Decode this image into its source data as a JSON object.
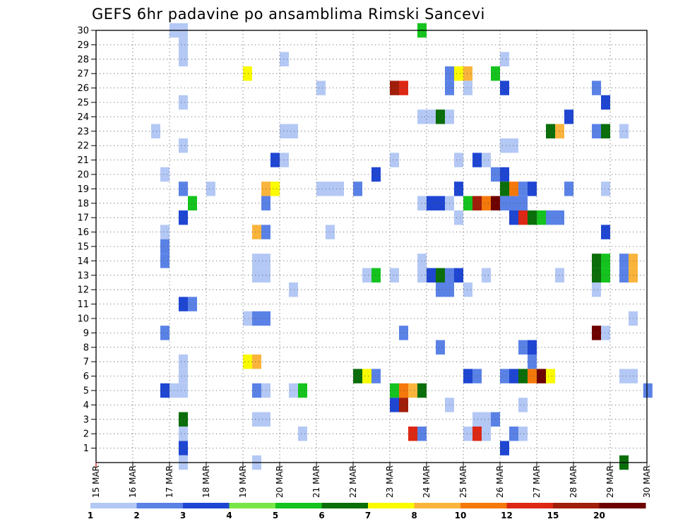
{
  "chart_data": {
    "type": "heatmap",
    "title": "GEFS 6hr padavine po ansamblima Rimski Sancevi",
    "xlabel": "",
    "ylabel": "",
    "x_tick_labels": [
      "15 MAR",
      "16 MAR",
      "17 MAR",
      "18 MAR",
      "19 MAR",
      "20 MAR",
      "21 MAR",
      "22 MAR",
      "23 MAR",
      "24 MAR",
      "25 MAR",
      "26 MAR",
      "27 MAR",
      "28 MAR",
      "29 MAR",
      "30 MAR"
    ],
    "x_range_days": [
      15,
      30
    ],
    "y_tick_labels": [
      "1",
      "2",
      "3",
      "4",
      "5",
      "6",
      "7",
      "8",
      "9",
      "10",
      "11",
      "12",
      "13",
      "14",
      "15",
      "16",
      "17",
      "18",
      "19",
      "20",
      "21",
      "22",
      "23",
      "24",
      "25",
      "26",
      "27",
      "28",
      "29",
      "30"
    ],
    "y_range": [
      0,
      30
    ],
    "grid": true,
    "legend": {
      "placement": "bottom",
      "labels": [
        "1",
        "2",
        "3",
        "4",
        "5",
        "6",
        "7",
        "8",
        "10",
        "12",
        "15",
        "20"
      ],
      "colors": [
        "#b4c8f5",
        "#5a82e6",
        "#1e46d2",
        "#78e646",
        "#14c31e",
        "#0a6e0a",
        "#fafa00",
        "#fab43c",
        "#f5780a",
        "#dc2814",
        "#a01e0a",
        "#6e0000"
      ]
    },
    "cells": [
      [
        17.0,
        30,
        1
      ],
      [
        17.25,
        30,
        1
      ],
      [
        17.25,
        29,
        1
      ],
      [
        17.25,
        28,
        1
      ],
      [
        17.25,
        22,
        1
      ],
      [
        17.25,
        25,
        1
      ],
      [
        16.75,
        16,
        1
      ],
      [
        16.75,
        20,
        1
      ],
      [
        16.75,
        15,
        2
      ],
      [
        16.5,
        23,
        1
      ],
      [
        16.75,
        14,
        2
      ],
      [
        17.25,
        19,
        2
      ],
      [
        17.25,
        17,
        3
      ],
      [
        17.5,
        18,
        5
      ],
      [
        17.25,
        11,
        3
      ],
      [
        17.5,
        11,
        2
      ],
      [
        16.75,
        9,
        2
      ],
      [
        17.25,
        7,
        1
      ],
      [
        17.25,
        6,
        1
      ],
      [
        17.0,
        5,
        1
      ],
      [
        17.25,
        5,
        1
      ],
      [
        16.75,
        5,
        3
      ],
      [
        17.25,
        3,
        6
      ],
      [
        17.25,
        2,
        1
      ],
      [
        17.25,
        1,
        3
      ],
      [
        17.25,
        0,
        1
      ],
      [
        18.0,
        19,
        1
      ],
      [
        19.0,
        27,
        7
      ],
      [
        19.5,
        19,
        8
      ],
      [
        19.75,
        19,
        7
      ],
      [
        19.5,
        18,
        2
      ],
      [
        19.25,
        16,
        8
      ],
      [
        19.5,
        16,
        2
      ],
      [
        19.25,
        14,
        1
      ],
      [
        19.5,
        14,
        1
      ],
      [
        19.25,
        13,
        1
      ],
      [
        19.5,
        13,
        1
      ],
      [
        19.0,
        10,
        1
      ],
      [
        19.25,
        10,
        2
      ],
      [
        19.5,
        10,
        2
      ],
      [
        19.0,
        7,
        7
      ],
      [
        19.25,
        7,
        8
      ],
      [
        19.25,
        5,
        2
      ],
      [
        19.5,
        5,
        1
      ],
      [
        19.25,
        3,
        1
      ],
      [
        19.5,
        3,
        1
      ],
      [
        19.25,
        0,
        1
      ],
      [
        20.0,
        28,
        1
      ],
      [
        19.75,
        21,
        3
      ],
      [
        20.0,
        21,
        1
      ],
      [
        20.0,
        23,
        1
      ],
      [
        20.25,
        23,
        1
      ],
      [
        20.25,
        12,
        1
      ],
      [
        20.25,
        5,
        1
      ],
      [
        20.5,
        5,
        5
      ],
      [
        20.5,
        2,
        1
      ],
      [
        21.0,
        26,
        1
      ],
      [
        21.0,
        19,
        1
      ],
      [
        21.25,
        19,
        1
      ],
      [
        21.5,
        19,
        1
      ],
      [
        21.25,
        16,
        1
      ],
      [
        22.0,
        19,
        2
      ],
      [
        22.5,
        20,
        3
      ],
      [
        22.25,
        13,
        1
      ],
      [
        22.5,
        13,
        5
      ],
      [
        22.0,
        6,
        6
      ],
      [
        22.25,
        6,
        7
      ],
      [
        22.5,
        6,
        2
      ],
      [
        23.0,
        26,
        11
      ],
      [
        23.25,
        26,
        10
      ],
      [
        23.0,
        21,
        1
      ],
      [
        23.0,
        13,
        1
      ],
      [
        23.0,
        5,
        5
      ],
      [
        23.25,
        5,
        9
      ],
      [
        23.5,
        5,
        8
      ],
      [
        23.75,
        5,
        6
      ],
      [
        23.0,
        4,
        3
      ],
      [
        23.25,
        4,
        11
      ],
      [
        23.25,
        9,
        2
      ],
      [
        23.5,
        2,
        10
      ],
      [
        23.75,
        2,
        2
      ],
      [
        23.75,
        30,
        5
      ],
      [
        23.75,
        24,
        1
      ],
      [
        24.0,
        24,
        1
      ],
      [
        24.25,
        24,
        6
      ],
      [
        24.5,
        24,
        1
      ],
      [
        23.75,
        18,
        1
      ],
      [
        24.0,
        18,
        3
      ],
      [
        24.25,
        18,
        3
      ],
      [
        24.5,
        18,
        1
      ],
      [
        23.75,
        14,
        1
      ],
      [
        23.75,
        13,
        1
      ],
      [
        24.0,
        13,
        3
      ],
      [
        24.25,
        13,
        6
      ],
      [
        24.5,
        13,
        2
      ],
      [
        24.75,
        13,
        3
      ],
      [
        24.25,
        12,
        2
      ],
      [
        24.5,
        12,
        2
      ],
      [
        24.25,
        8,
        2
      ],
      [
        24.5,
        4,
        1
      ],
      [
        24.5,
        27,
        2
      ],
      [
        24.75,
        27,
        7
      ],
      [
        25.0,
        27,
        8
      ],
      [
        24.5,
        26,
        2
      ],
      [
        25.0,
        26,
        1
      ],
      [
        24.75,
        21,
        1
      ],
      [
        24.75,
        19,
        3
      ],
      [
        24.75,
        17,
        1
      ],
      [
        25.0,
        18,
        5
      ],
      [
        25.25,
        18,
        11
      ],
      [
        25.5,
        18,
        9
      ],
      [
        25.75,
        18,
        12
      ],
      [
        25.0,
        12,
        1
      ],
      [
        25.0,
        6,
        3
      ],
      [
        25.25,
        6,
        2
      ],
      [
        25.0,
        2,
        1
      ],
      [
        25.25,
        2,
        10
      ],
      [
        25.5,
        2,
        1
      ],
      [
        25.25,
        3,
        1
      ],
      [
        25.5,
        3,
        1
      ],
      [
        25.75,
        3,
        2
      ],
      [
        25.25,
        21,
        3
      ],
      [
        25.5,
        21,
        1
      ],
      [
        25.5,
        13,
        1
      ],
      [
        25.75,
        27,
        5
      ],
      [
        26.0,
        28,
        1
      ],
      [
        26.0,
        26,
        3
      ],
      [
        26.0,
        22,
        1
      ],
      [
        26.25,
        22,
        1
      ],
      [
        25.75,
        20,
        2
      ],
      [
        26.0,
        20,
        3
      ],
      [
        26.0,
        19,
        6
      ],
      [
        26.25,
        19,
        9
      ],
      [
        26.5,
        19,
        2
      ],
      [
        26.75,
        19,
        3
      ],
      [
        26.0,
        18,
        2
      ],
      [
        26.25,
        18,
        2
      ],
      [
        26.5,
        18,
        2
      ],
      [
        26.25,
        17,
        3
      ],
      [
        26.5,
        17,
        10
      ],
      [
        26.75,
        17,
        6
      ],
      [
        27.0,
        17,
        5
      ],
      [
        27.25,
        17,
        2
      ],
      [
        27.5,
        17,
        2
      ],
      [
        26.0,
        6,
        2
      ],
      [
        26.25,
        6,
        3
      ],
      [
        26.5,
        6,
        6
      ],
      [
        26.75,
        6,
        9
      ],
      [
        27.0,
        6,
        12
      ],
      [
        27.25,
        6,
        7
      ],
      [
        26.5,
        8,
        2
      ],
      [
        26.75,
        8,
        3
      ],
      [
        26.75,
        7,
        2
      ],
      [
        26.25,
        2,
        2
      ],
      [
        26.5,
        2,
        1
      ],
      [
        26.5,
        4,
        1
      ],
      [
        26.0,
        1,
        3
      ],
      [
        27.25,
        23,
        6
      ],
      [
        27.5,
        23,
        8
      ],
      [
        27.75,
        24,
        3
      ],
      [
        27.75,
        19,
        2
      ],
      [
        27.5,
        13,
        1
      ],
      [
        28.5,
        26,
        2
      ],
      [
        28.75,
        25,
        3
      ],
      [
        28.5,
        23,
        2
      ],
      [
        28.75,
        23,
        6
      ],
      [
        29.25,
        23,
        1
      ],
      [
        28.75,
        19,
        1
      ],
      [
        28.75,
        16,
        3
      ],
      [
        28.5,
        13,
        6
      ],
      [
        28.75,
        13,
        5
      ],
      [
        28.5,
        14,
        6
      ],
      [
        28.75,
        14,
        5
      ],
      [
        29.25,
        14,
        2
      ],
      [
        29.5,
        14,
        8
      ],
      [
        29.25,
        13,
        2
      ],
      [
        29.5,
        13,
        8
      ],
      [
        28.5,
        12,
        1
      ],
      [
        29.5,
        10,
        1
      ],
      [
        28.5,
        9,
        12
      ],
      [
        28.75,
        9,
        1
      ],
      [
        29.25,
        6,
        1
      ],
      [
        29.5,
        6,
        1
      ],
      [
        29.9,
        5,
        2
      ],
      [
        29.25,
        0,
        6
      ]
    ]
  }
}
